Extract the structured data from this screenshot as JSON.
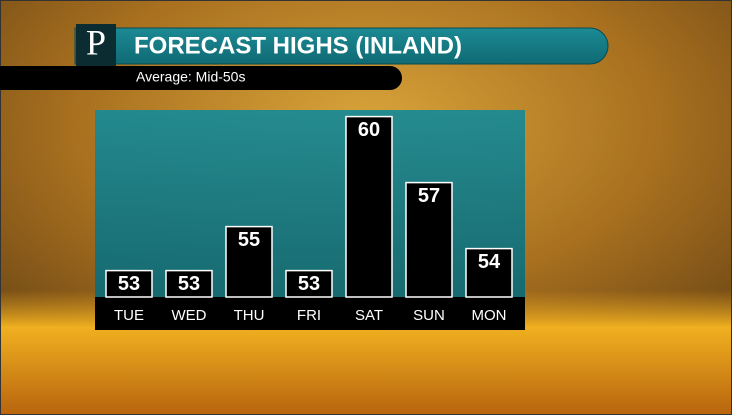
{
  "logo": "P",
  "chart_data": {
    "type": "bar",
    "title": "FORECAST HIGHS (INLAND)",
    "subtitle": "Average: Mid-50s",
    "categories": [
      "TUE",
      "WED",
      "THU",
      "FRI",
      "SAT",
      "SUN",
      "MON"
    ],
    "values": [
      53,
      53,
      55,
      53,
      60,
      57,
      54
    ],
    "color": "#000000",
    "ylim": [
      51.8,
      60.3
    ]
  }
}
